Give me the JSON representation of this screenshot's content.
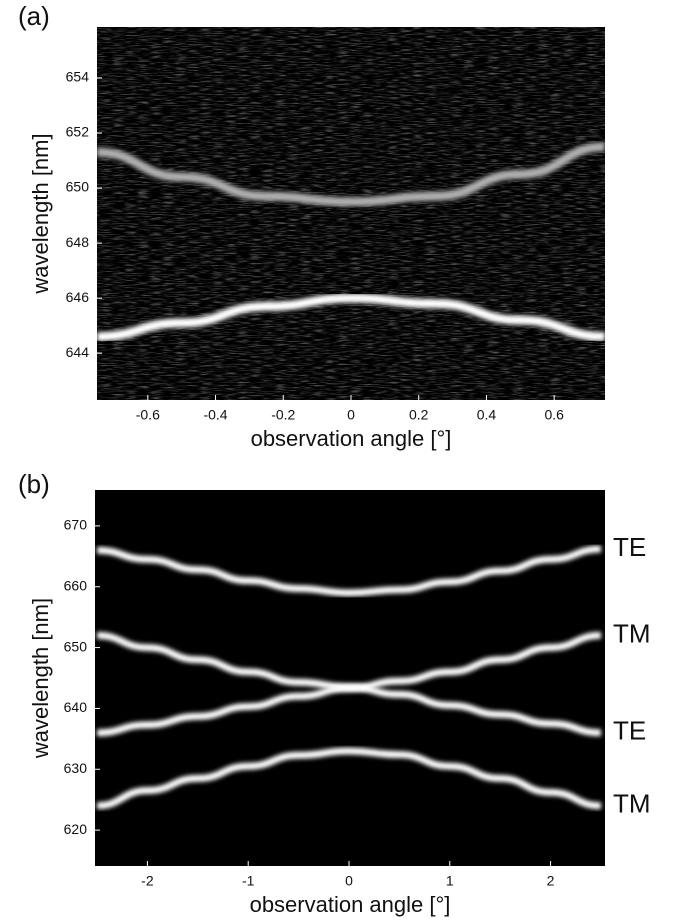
{
  "chart_data": [
    {
      "type": "line",
      "panel_label": "(a)",
      "x_label": "observation angle [°]",
      "y_label": "wavelength [nm]",
      "xlim": [
        -0.75,
        0.75
      ],
      "ylim": [
        642.3,
        655.85
      ],
      "xticks": [
        -0.6,
        -0.4,
        -0.2,
        0,
        0.2,
        0.4,
        0.6
      ],
      "yticks": [
        644,
        646,
        648,
        650,
        652,
        654
      ],
      "x": [
        -0.75,
        -0.5,
        -0.25,
        0,
        0.25,
        0.5,
        0.75
      ],
      "series": [
        {
          "color": "#ffffff",
          "values": [
            644.6,
            645.1,
            645.7,
            646,
            645.8,
            645.2,
            644.6
          ]
        },
        {
          "color": "#b0b0b0",
          "values": [
            651.3,
            650.4,
            649.7,
            649.5,
            649.7,
            650.5,
            651.5
          ]
        }
      ]
    },
    {
      "type": "line",
      "panel_label": "(b)",
      "x_label": "observation angle [°]",
      "y_label": "wavelength [nm]",
      "xlim": [
        -2.52,
        2.54
      ],
      "ylim": [
        614.1,
        675.9
      ],
      "xticks": [
        -2,
        -1,
        0,
        1,
        2
      ],
      "yticks": [
        620,
        630,
        640,
        650,
        660,
        670
      ],
      "x": [
        -2.5,
        -2,
        -1.5,
        -1,
        -0.5,
        0,
        0.5,
        1,
        1.5,
        2,
        2.5
      ],
      "series": [
        {
          "name": "TE",
          "color": "#ffffff",
          "values": [
            666,
            664.5,
            662.8,
            661,
            659.7,
            659,
            659.5,
            660.8,
            662.6,
            664.5,
            666.2
          ]
        },
        {
          "name": "TM",
          "color": "#ffffff",
          "values": [
            636,
            637.3,
            638.7,
            640.3,
            642,
            643.3,
            644.5,
            646,
            648,
            650,
            652
          ]
        },
        {
          "name": "TE",
          "color": "#ffffff",
          "values": [
            652,
            650,
            648,
            646,
            644.3,
            643.5,
            642.3,
            640.5,
            639,
            637.5,
            636
          ]
        },
        {
          "name": "TM",
          "color": "#ffffff",
          "values": [
            624,
            626.5,
            628.5,
            630.5,
            632.3,
            633,
            632.4,
            630.5,
            628.5,
            626.2,
            624
          ]
        }
      ]
    }
  ]
}
